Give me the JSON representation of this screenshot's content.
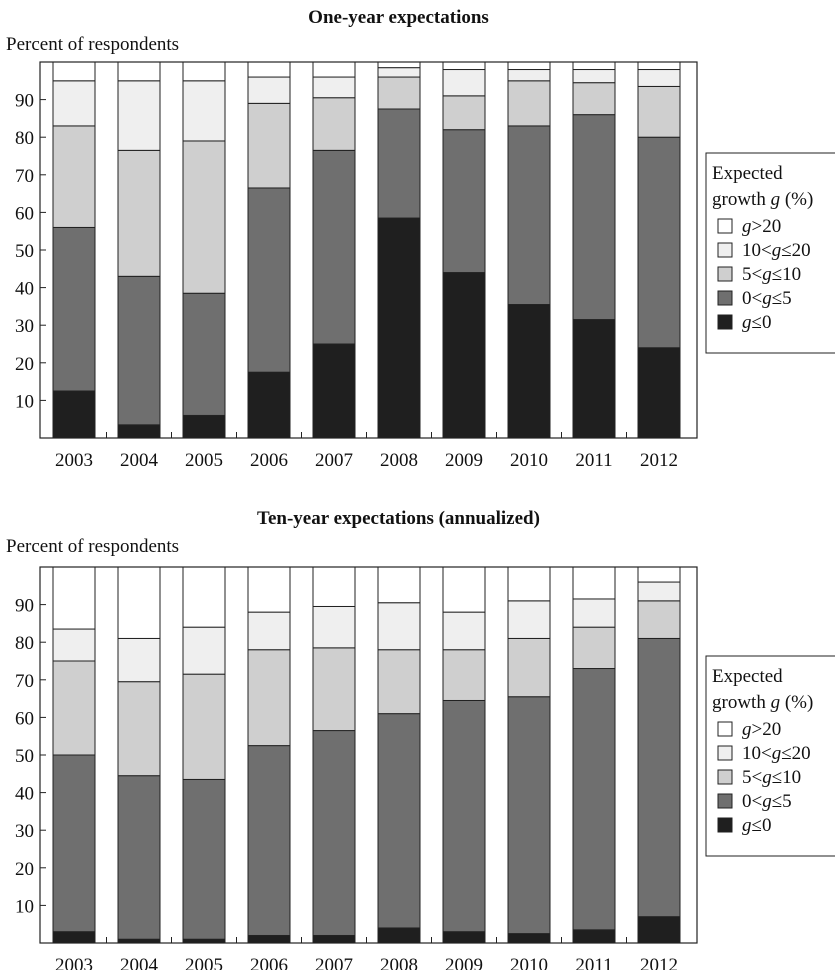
{
  "chart_data": [
    {
      "type": "bar",
      "stacked": true,
      "title": "One-year expectations",
      "ylabel": "Percent of respondents",
      "xlabel": "",
      "ylim": [
        0,
        100
      ],
      "yticks": [
        "10",
        "20",
        "30",
        "40",
        "50",
        "60",
        "70",
        "80",
        "90"
      ],
      "categories": [
        "2003",
        "2004",
        "2005",
        "2006",
        "2007",
        "2008",
        "2009",
        "2010",
        "2011",
        "2012"
      ],
      "series": [
        {
          "name": "g≤0",
          "color": "#1f1f1f",
          "values": [
            12.5,
            3.5,
            6,
            17.5,
            25,
            58.5,
            44,
            35.5,
            31.5,
            24
          ]
        },
        {
          "name": "0<g≤5",
          "color": "#6f6f6f",
          "values": [
            43.5,
            39.5,
            32.5,
            49,
            51.5,
            29,
            38,
            47.5,
            54.5,
            56
          ]
        },
        {
          "name": "5<g≤10",
          "color": "#cfcfcf",
          "values": [
            27,
            33.5,
            40.5,
            22.5,
            14,
            8.5,
            9,
            12,
            8.5,
            13.5
          ]
        },
        {
          "name": "10<g≤20",
          "color": "#efefef",
          "values": [
            12,
            18.5,
            16,
            7,
            5.5,
            2.5,
            7,
            3,
            3.5,
            4.5
          ]
        },
        {
          "name": "g>20",
          "color": "#ffffff",
          "values": [
            5,
            5,
            5,
            4,
            4,
            1.5,
            2,
            2,
            2,
            2
          ]
        }
      ],
      "legend": {
        "title_line1": "Expected",
        "title_line2": "growth",
        "title_var": "g",
        "title_unit": "(%)",
        "placement": "right"
      },
      "grid": false
    },
    {
      "type": "bar",
      "stacked": true,
      "title": "Ten-year expectations (annualized)",
      "ylabel": "Percent of respondents",
      "xlabel": "",
      "ylim": [
        0,
        100
      ],
      "yticks": [
        "10",
        "20",
        "30",
        "40",
        "50",
        "60",
        "70",
        "80",
        "90"
      ],
      "categories": [
        "2003",
        "2004",
        "2005",
        "2006",
        "2007",
        "2008",
        "2009",
        "2010",
        "2011",
        "2012"
      ],
      "series": [
        {
          "name": "g≤0",
          "color": "#1f1f1f",
          "values": [
            3,
            1,
            1,
            2,
            2,
            4,
            3,
            2.5,
            3.5,
            7
          ]
        },
        {
          "name": "0<g≤5",
          "color": "#6f6f6f",
          "values": [
            47,
            43.5,
            42.5,
            50.5,
            54.5,
            57,
            61.5,
            63,
            69.5,
            74
          ]
        },
        {
          "name": "5<g≤10",
          "color": "#cfcfcf",
          "values": [
            25,
            25,
            28,
            25.5,
            22,
            17,
            13.5,
            15.5,
            11,
            10
          ]
        },
        {
          "name": "10<g≤20",
          "color": "#efefef",
          "values": [
            8.5,
            11.5,
            12.5,
            10,
            11,
            12.5,
            10,
            10,
            7.5,
            5
          ]
        },
        {
          "name": "g>20",
          "color": "#ffffff",
          "values": [
            16.5,
            19,
            16,
            12,
            10.5,
            9.5,
            12,
            9,
            8.5,
            4
          ]
        }
      ],
      "legend": {
        "title_line1": "Expected",
        "title_line2": "growth",
        "title_var": "g",
        "title_unit": "(%)",
        "placement": "right"
      },
      "grid": false
    }
  ]
}
